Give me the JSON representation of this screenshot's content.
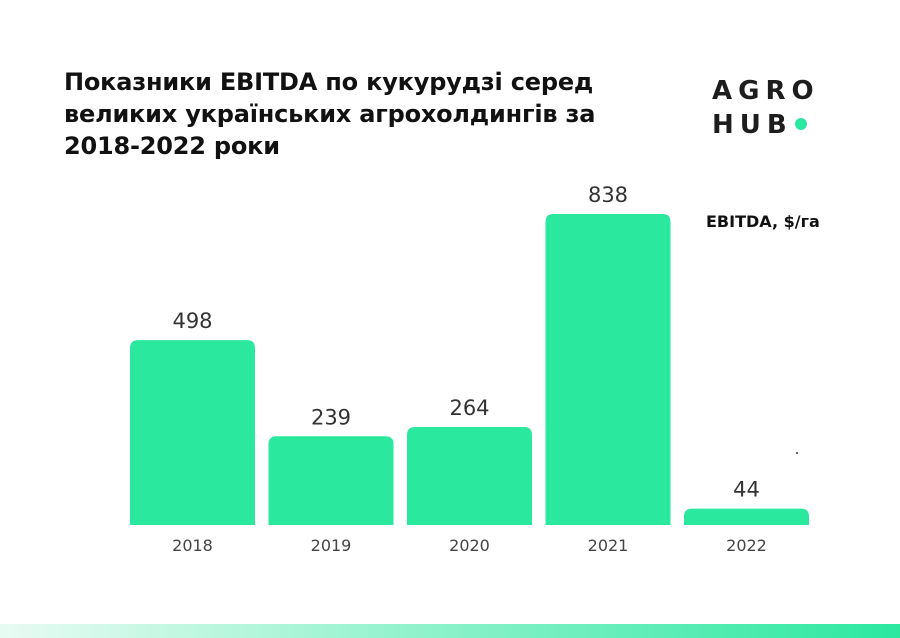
{
  "logo": {
    "line1": "AGRO",
    "line2": "HUB",
    "dot_color": "#2be89f"
  },
  "colors": {
    "bar": "#2be89f",
    "band_start": "#e8fbf3",
    "band_end": "#2be89f"
  },
  "chart_data": {
    "type": "bar",
    "title": "Показники EBITDA по кукурудзі серед великих українських агрохолдингів за 2018-2022 роки",
    "ylabel": "EBITDA, $/га",
    "xlabel": "",
    "categories": [
      "2018",
      "2019",
      "2020",
      "2021",
      "2022"
    ],
    "values": [
      498,
      239,
      264,
      838,
      44
    ],
    "ylim": [
      0,
      838
    ],
    "grid": false,
    "legend": "none"
  }
}
